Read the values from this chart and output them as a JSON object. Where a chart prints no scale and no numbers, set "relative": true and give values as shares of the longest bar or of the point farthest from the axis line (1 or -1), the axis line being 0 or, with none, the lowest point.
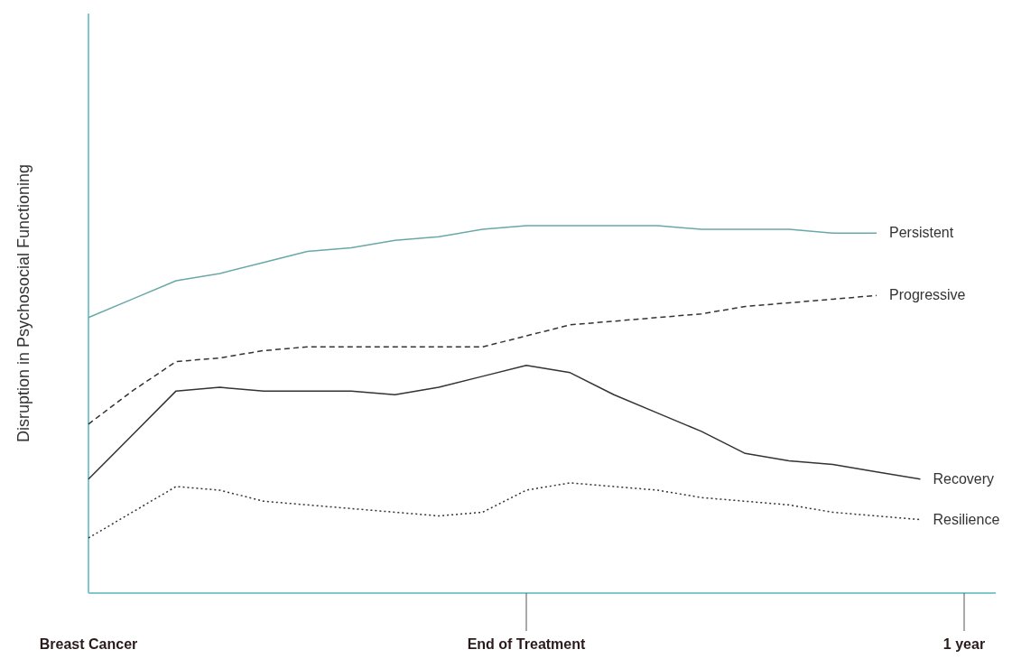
{
  "chart_data": {
    "type": "line",
    "relative": true,
    "ylabel": "Disruption in Psychosocial Functioning",
    "categories": [
      "Breast Cancer",
      null,
      null,
      null,
      null,
      null,
      null,
      null,
      null,
      null,
      "End of Treatment",
      null,
      null,
      null,
      null,
      null,
      null,
      null,
      null,
      null,
      "1 year"
    ],
    "marker": "none",
    "series": [
      {
        "name": "Persistent",
        "color": "#6aa8a8",
        "line_style": "solid",
        "values": [
          0.75,
          0.8,
          0.85,
          0.87,
          0.9,
          0.93,
          0.94,
          0.96,
          0.97,
          0.99,
          1.0,
          1.0,
          1.0,
          1.0,
          0.99,
          0.99,
          0.99,
          0.98,
          0.98,
          null,
          null
        ]
      },
      {
        "name": "Progressive",
        "color": "#333333",
        "line_style": "dashed",
        "values": [
          0.46,
          0.55,
          0.63,
          0.64,
          0.66,
          0.67,
          0.67,
          0.67,
          0.67,
          0.67,
          0.7,
          0.73,
          0.74,
          0.75,
          0.76,
          0.78,
          0.79,
          0.8,
          0.81,
          null,
          null
        ]
      },
      {
        "name": "Recovery",
        "color": "#333333",
        "line_style": "solid",
        "values": [
          0.31,
          0.43,
          0.55,
          0.56,
          0.55,
          0.55,
          0.55,
          0.54,
          0.56,
          0.59,
          0.62,
          0.6,
          0.54,
          0.49,
          0.44,
          0.38,
          0.36,
          0.35,
          0.33,
          0.31,
          null
        ]
      },
      {
        "name": "Resilience",
        "color": "#333333",
        "line_style": "dotted",
        "values": [
          0.15,
          0.22,
          0.29,
          0.28,
          0.25,
          0.24,
          0.23,
          0.22,
          0.21,
          0.22,
          0.28,
          0.3,
          0.29,
          0.28,
          0.26,
          0.25,
          0.24,
          0.22,
          0.21,
          0.2,
          null
        ]
      }
    ]
  }
}
